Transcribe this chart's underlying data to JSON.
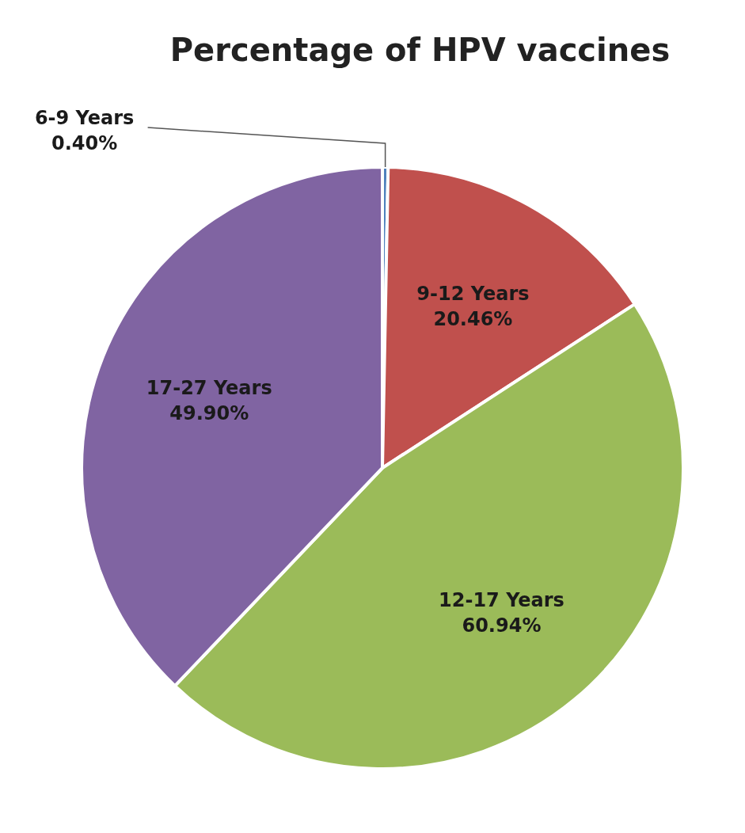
{
  "chart_data": {
    "type": "pie",
    "title": "Percentage of HPV vaccines",
    "categories": [
      "6-9 Years",
      "9-12 Years",
      "12-17 Years",
      "17-27 Years"
    ],
    "values": [
      0.4,
      20.46,
      60.94,
      49.9
    ],
    "colors": [
      "#4f81bd",
      "#c0504d",
      "#9bbb59",
      "#8064a2"
    ],
    "value_labels": [
      "0.40%",
      "20.46%",
      "60.94%",
      "49.90%"
    ],
    "legend": false
  }
}
